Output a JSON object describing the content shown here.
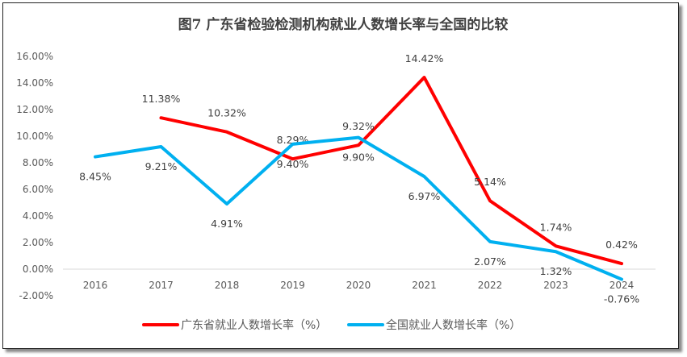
{
  "chart_data": {
    "type": "line",
    "title": "图7  广东省检验检测机构就业人数增长率与全国的比较",
    "categories": [
      "2016",
      "2017",
      "2018",
      "2019",
      "2020",
      "2021",
      "2022",
      "2023",
      "2024"
    ],
    "ylim": [
      -2,
      16
    ],
    "yticks": [
      "-2.00%",
      "0.00%",
      "2.00%",
      "4.00%",
      "6.00%",
      "8.00%",
      "10.00%",
      "12.00%",
      "14.00%",
      "16.00%"
    ],
    "grid": false,
    "legend": "bottom",
    "series": [
      {
        "name": "广东省就业人数增长率（%）",
        "color": "#ff0000",
        "values": [
          null,
          11.38,
          10.32,
          8.29,
          9.32,
          14.42,
          5.14,
          1.74,
          0.42
        ],
        "labels": [
          "",
          "11.38%",
          "10.32%",
          "8.29%",
          "9.32%",
          "14.42%",
          "5.14%",
          "1.74%",
          "0.42%"
        ]
      },
      {
        "name": "全国就业人数增长率（%）",
        "color": "#00b0f0",
        "values": [
          8.45,
          9.21,
          4.91,
          9.4,
          9.9,
          6.97,
          2.07,
          1.32,
          -0.76
        ],
        "labels": [
          "8.45%",
          "9.21%",
          "4.91%",
          "9.40%",
          "9.90%",
          "6.97%",
          "2.07%",
          "1.32%",
          "-0.76%"
        ]
      }
    ]
  }
}
